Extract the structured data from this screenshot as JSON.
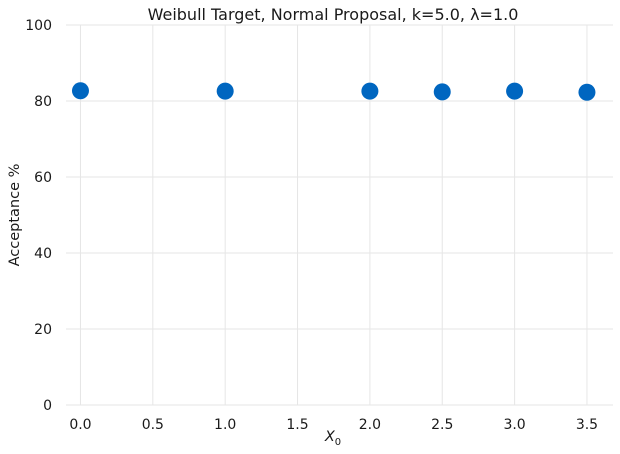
{
  "chart_data": {
    "type": "scatter",
    "title": "Weibull Target, Normal Proposal, k=5.0, λ=1.0",
    "xlabel": "X",
    "xlabel_subscript": "0",
    "ylabel": "Acceptance %",
    "xlim": [
      -0.1,
      3.68
    ],
    "ylim": [
      0,
      100
    ],
    "xticks": [
      0.0,
      0.5,
      1.0,
      1.5,
      2.0,
      2.5,
      3.0,
      3.5
    ],
    "xtick_labels": [
      "0.0",
      "0.5",
      "1.0",
      "1.5",
      "2.0",
      "2.5",
      "3.0",
      "3.5"
    ],
    "yticks": [
      0,
      20,
      40,
      60,
      80,
      100
    ],
    "ytick_labels": [
      "0",
      "20",
      "40",
      "60",
      "80",
      "100"
    ],
    "grid": true,
    "legend": "none",
    "marker_color": "#0066c0",
    "points": [
      {
        "x": 0.0,
        "y": 82.7
      },
      {
        "x": 1.0,
        "y": 82.6
      },
      {
        "x": 2.0,
        "y": 82.6
      },
      {
        "x": 2.5,
        "y": 82.4
      },
      {
        "x": 3.0,
        "y": 82.6
      },
      {
        "x": 3.5,
        "y": 82.3
      }
    ]
  }
}
